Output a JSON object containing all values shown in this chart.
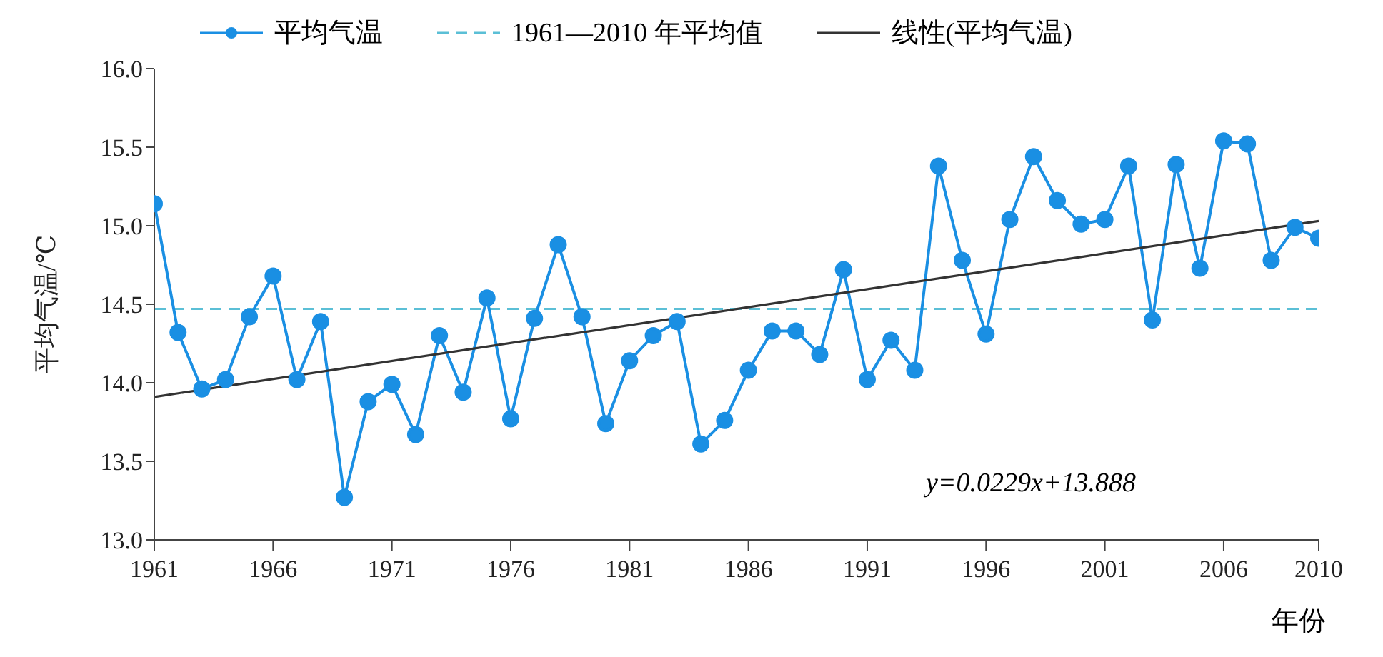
{
  "chart_data": {
    "type": "line",
    "xlabel": "年份",
    "ylabel": "平均气温/℃",
    "x": [
      1961,
      1962,
      1963,
      1964,
      1965,
      1966,
      1967,
      1968,
      1969,
      1970,
      1971,
      1972,
      1973,
      1974,
      1975,
      1976,
      1977,
      1978,
      1979,
      1980,
      1981,
      1982,
      1983,
      1984,
      1985,
      1986,
      1987,
      1988,
      1989,
      1990,
      1991,
      1992,
      1993,
      1994,
      1995,
      1996,
      1997,
      1998,
      1999,
      2000,
      2001,
      2002,
      2003,
      2004,
      2005,
      2006,
      2007,
      2008,
      2009,
      2010
    ],
    "series": [
      {
        "name": "平均气温",
        "color": "#1a8fe3",
        "marker": "circle",
        "values": [
          15.14,
          14.32,
          13.96,
          14.02,
          14.42,
          14.68,
          14.02,
          14.39,
          13.27,
          13.88,
          13.99,
          13.67,
          14.3,
          13.94,
          14.54,
          13.77,
          14.41,
          14.88,
          14.42,
          13.74,
          14.14,
          14.3,
          14.39,
          13.61,
          13.76,
          14.08,
          14.33,
          14.33,
          14.18,
          14.72,
          14.02,
          14.27,
          14.08,
          15.38,
          14.78,
          14.31,
          15.04,
          15.44,
          15.16,
          15.01,
          15.04,
          15.38,
          14.4,
          15.39,
          14.73,
          15.54,
          15.52,
          14.78,
          14.99,
          14.92
        ]
      },
      {
        "name": "线性(平均气温)",
        "type": "line",
        "color": "#333333",
        "marker": "none",
        "line_style": "solid",
        "x": [
          1961,
          2010
        ],
        "values": [
          13.91,
          15.03
        ]
      }
    ],
    "ref_lines": [
      {
        "axis": "y",
        "value": 14.47,
        "label": "1961—2010 年平均值",
        "color": "#5bbfd6",
        "line_style": "dashed"
      }
    ],
    "annotations": [
      "y=0.0229x+13.888"
    ],
    "xlim": [
      1961,
      2010
    ],
    "xticks": [
      1961,
      1966,
      1971,
      1976,
      1981,
      1986,
      1991,
      1996,
      2001,
      2006,
      2010
    ],
    "ylim": [
      13,
      16
    ],
    "yticks": [
      {
        "value": 13,
        "label": "13.0"
      },
      {
        "value": 13.5,
        "label": "13.5"
      },
      {
        "value": 14,
        "label": "14.0"
      },
      {
        "value": 14.5,
        "label": "14.5"
      },
      {
        "value": 15,
        "label": "15.0"
      },
      {
        "value": 15.5,
        "label": "15.5"
      },
      {
        "value": 16,
        "label": "16.0"
      }
    ],
    "legend": "top"
  }
}
